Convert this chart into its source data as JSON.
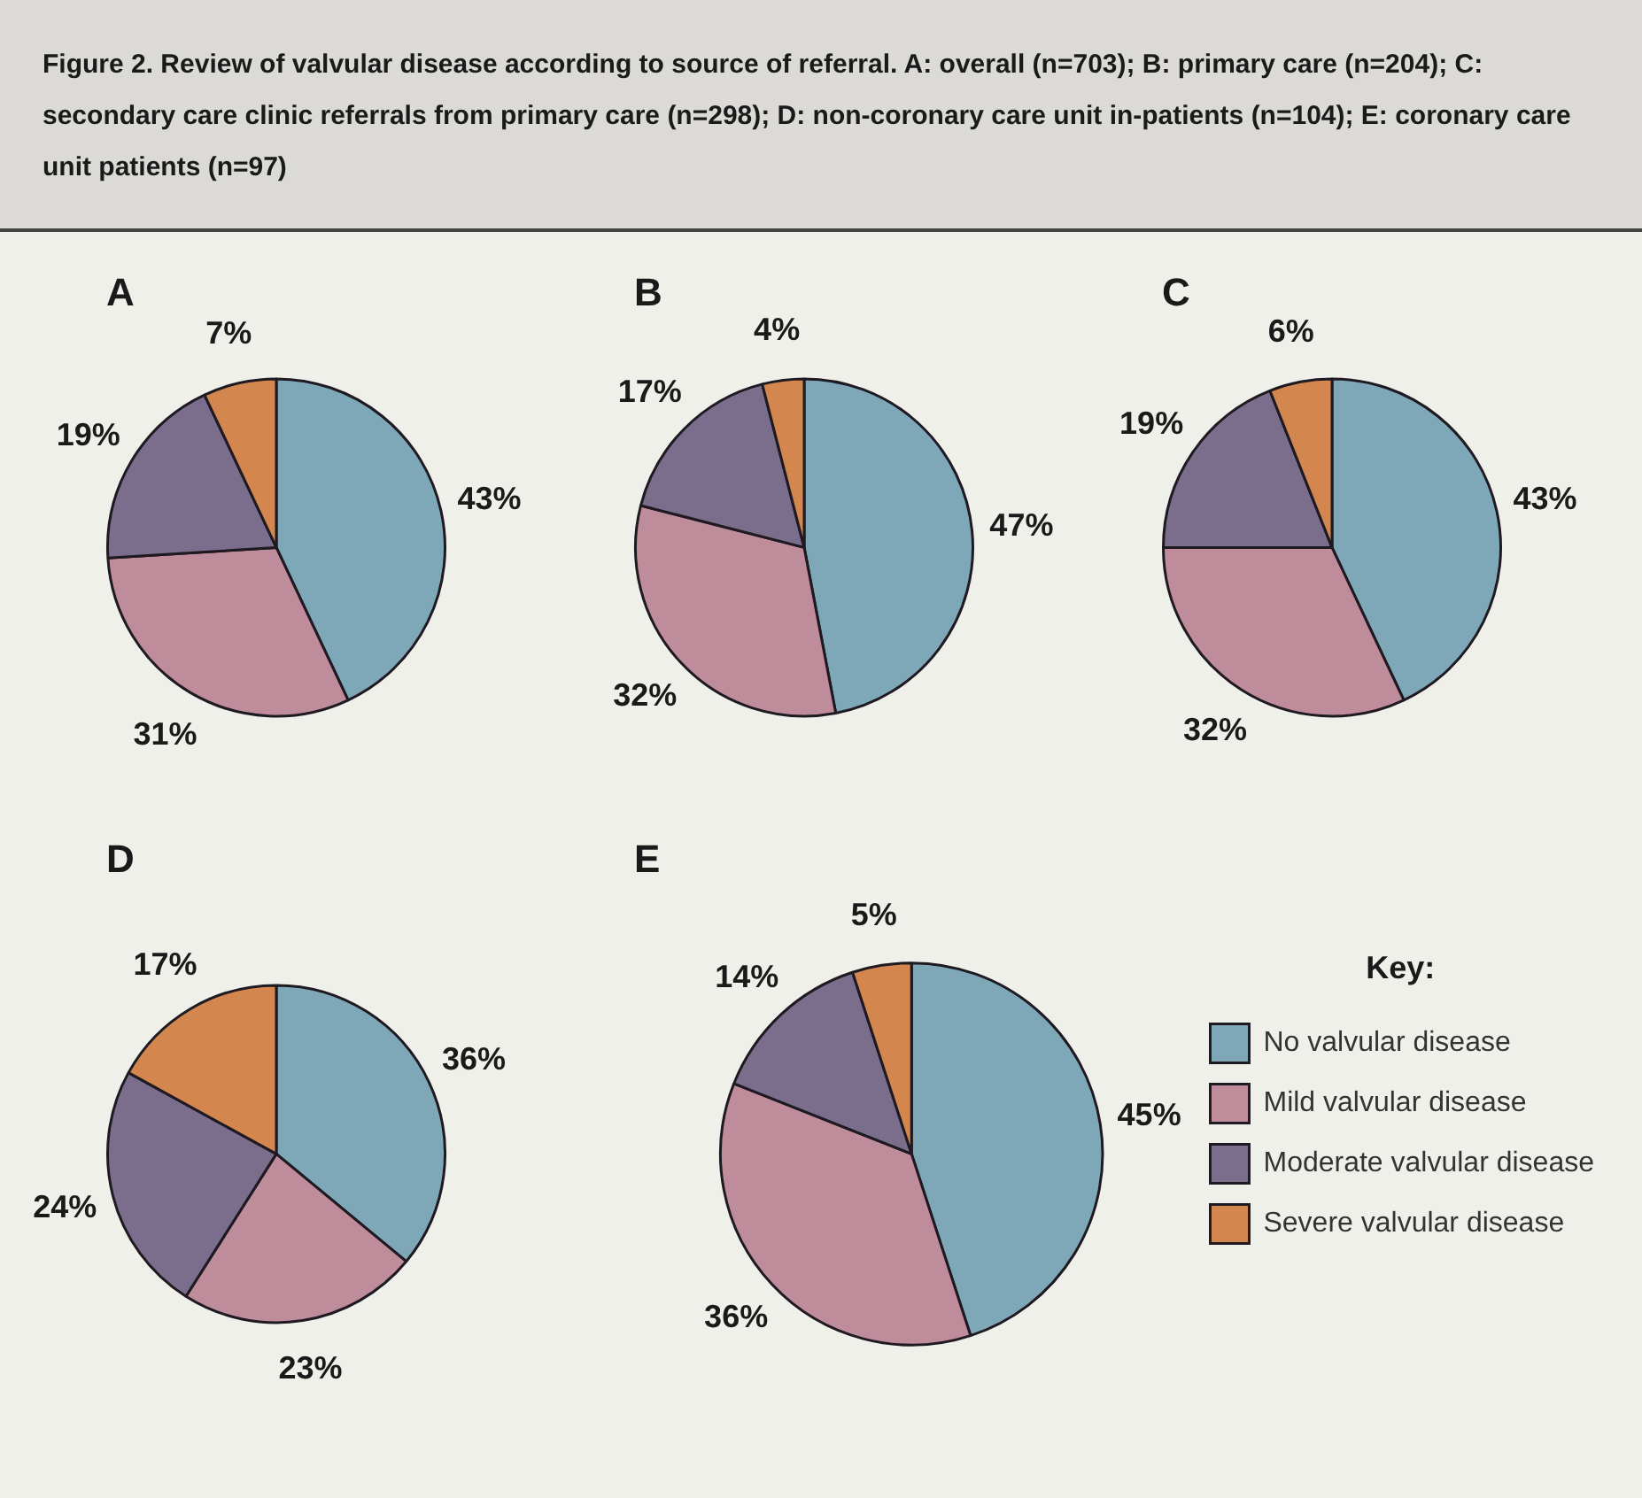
{
  "chart_data": [
    {
      "type": "pie",
      "title": "A",
      "annotations": [
        "Figure 2. Review of valvular disease according to source of referral. A: overall (n=703); B: primary care (n=204); C: secondary care clinic referrals from primary care (n=298); D: non-coronary care unit in-patients (n=104); E: coronary care unit patients (n=97)"
      ],
      "categories": [
        null,
        null,
        null,
        null
      ],
      "values": [
        43,
        31,
        19,
        7
      ],
      "value_labels": [
        "43%",
        "31%",
        "19%",
        "7%"
      ],
      "colors": [
        "#7ea8b8",
        "#bf8c9c",
        "#7a6e8c",
        "#d4864f"
      ]
    },
    {
      "type": "pie",
      "title": "B",
      "categories": [
        null,
        null,
        null,
        null
      ],
      "values": [
        47,
        32,
        17,
        4
      ],
      "value_labels": [
        "47%",
        "32%",
        "17%",
        "4%"
      ],
      "colors": [
        "#7ea8b8",
        "#bf8c9c",
        "#7a6e8c",
        "#d4864f"
      ]
    },
    {
      "type": "pie",
      "title": "C",
      "categories": [
        null,
        null,
        null,
        null
      ],
      "values": [
        43,
        32,
        19,
        6
      ],
      "value_labels": [
        "43%",
        "32%",
        "19%",
        "6%"
      ],
      "colors": [
        "#7ea8b8",
        "#bf8c9c",
        "#7a6e8c",
        "#d4864f"
      ]
    },
    {
      "type": "pie",
      "title": "D",
      "categories": [
        null,
        null,
        null,
        null
      ],
      "values": [
        36,
        23,
        24,
        17
      ],
      "value_labels": [
        "36%",
        "23%",
        "24%",
        "17%"
      ],
      "colors": [
        "#7ea8b8",
        "#bf8c9c",
        "#7a6e8c",
        "#d4864f"
      ]
    },
    {
      "type": "pie",
      "title": "E",
      "categories": [
        "No valvular disease",
        "Mild valvular disease",
        "Moderate valvular disease",
        "Severe valvular disease"
      ],
      "values": [
        45,
        36,
        14,
        5
      ],
      "value_labels": [
        "45%",
        "36%",
        "14%",
        "5%"
      ],
      "colors": [
        "#7ea8b8",
        "#bf8c9c",
        "#7a6e8c",
        "#d4864f"
      ],
      "legend": "right",
      "legend_title": "Key:"
    }
  ]
}
